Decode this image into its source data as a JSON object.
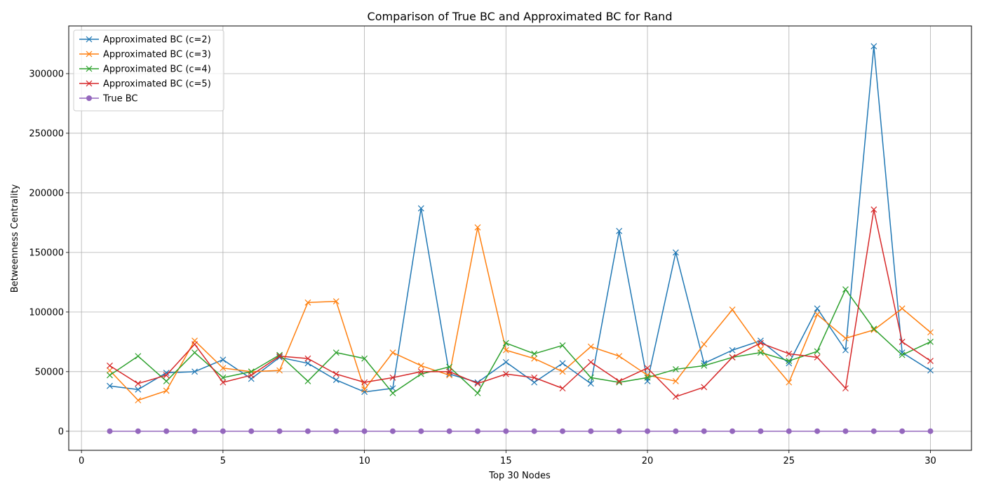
{
  "chart_data": {
    "type": "line",
    "title": "Comparison of True BC and Approximated BC for Rand",
    "xlabel": "Top 30 Nodes",
    "ylabel": "Betweenness Centrality",
    "xlim": [
      -0.45,
      31.45
    ],
    "ylim": [
      -16000,
      340000
    ],
    "xticks": [
      0,
      5,
      10,
      15,
      20,
      25,
      30
    ],
    "yticks": [
      0,
      50000,
      100000,
      150000,
      200000,
      250000,
      300000
    ],
    "grid": true,
    "legend_position": "top-left",
    "x": [
      1,
      2,
      3,
      4,
      5,
      6,
      7,
      8,
      9,
      10,
      11,
      12,
      13,
      14,
      15,
      16,
      17,
      18,
      19,
      20,
      21,
      22,
      23,
      24,
      25,
      26,
      27,
      28,
      29,
      30
    ],
    "series": [
      {
        "name": "Approximated BC (c=2)",
        "color": "#1f77b4",
        "marker": "x",
        "values": [
          38000,
          35000,
          49000,
          50000,
          60000,
          44000,
          62000,
          57000,
          43000,
          33000,
          36000,
          187000,
          48000,
          41000,
          58000,
          41000,
          57000,
          40000,
          168000,
          42000,
          150000,
          57000,
          68000,
          76000,
          57000,
          103000,
          68000,
          323000,
          66000,
          51000
        ]
      },
      {
        "name": "Approximated BC (c=3)",
        "color": "#ff7f0e",
        "marker": "x",
        "values": [
          51000,
          26000,
          34000,
          76000,
          53000,
          50000,
          51000,
          108000,
          109000,
          35000,
          66000,
          55000,
          47000,
          171000,
          68000,
          61000,
          50000,
          71000,
          63000,
          47000,
          42000,
          73000,
          102000,
          69000,
          41000,
          98000,
          78000,
          85000,
          103000,
          83000
        ]
      },
      {
        "name": "Approximated BC (c=4)",
        "color": "#2ca02c",
        "marker": "x",
        "values": [
          47000,
          63000,
          42000,
          66000,
          45000,
          50000,
          64000,
          42000,
          66000,
          61000,
          32000,
          48000,
          54000,
          32000,
          74000,
          65000,
          72000,
          45000,
          41000,
          45000,
          52000,
          55000,
          62000,
          66000,
          59000,
          67000,
          119000,
          86000,
          64000,
          75000
        ]
      },
      {
        "name": "Approximated BC (c=5)",
        "color": "#d62728",
        "marker": "x",
        "values": [
          55000,
          40000,
          47000,
          73000,
          41000,
          47000,
          63000,
          61000,
          48000,
          41000,
          45000,
          50000,
          50000,
          40000,
          48000,
          45000,
          36000,
          58000,
          42000,
          53000,
          29000,
          37000,
          62000,
          74000,
          65000,
          62000,
          36000,
          186000,
          75000,
          59000
        ]
      },
      {
        "name": "True BC",
        "color": "#9467bd",
        "marker": "o",
        "values": [
          70,
          70,
          70,
          70,
          70,
          70,
          70,
          70,
          70,
          70,
          70,
          70,
          70,
          70,
          70,
          70,
          70,
          70,
          70,
          70,
          70,
          70,
          70,
          70,
          70,
          70,
          70,
          70,
          70,
          70
        ]
      }
    ]
  }
}
